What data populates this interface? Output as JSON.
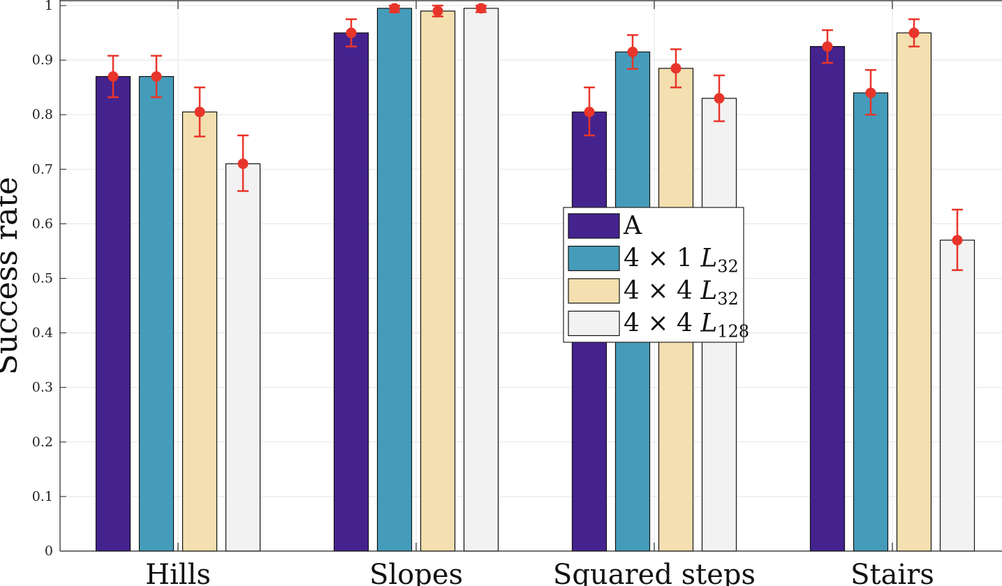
{
  "chart_data": {
    "type": "bar",
    "ylabel": "Success rate",
    "xlabel": "",
    "ylim": [
      0,
      1
    ],
    "yticks": [
      "0",
      "0.1",
      "0.2",
      "0.3",
      "0.4",
      "0.5",
      "0.6",
      "0.7",
      "0.8",
      "0.9",
      "1"
    ],
    "grid": true,
    "categories": [
      "Hills",
      "Slopes",
      "Squared steps",
      "Stairs"
    ],
    "legend_position": "center",
    "series": [
      {
        "name": "A",
        "color": "#44238f",
        "values": [
          0.87,
          0.95,
          0.805,
          0.925
        ],
        "mean": [
          0.87,
          0.95,
          0.805,
          0.925
        ],
        "err_low": [
          0.832,
          0.925,
          0.762,
          0.895
        ],
        "err_high": [
          0.908,
          0.975,
          0.85,
          0.955
        ]
      },
      {
        "name": "4 × 1 L32",
        "label_parts": {
          "main": "4 × 1 ",
          "var": "L",
          "sub": "32"
        },
        "color": "#459cba",
        "values": [
          0.87,
          0.995,
          0.915,
          0.84
        ],
        "mean": [
          0.87,
          0.995,
          0.915,
          0.84
        ],
        "err_low": [
          0.832,
          0.988,
          0.884,
          0.8
        ],
        "err_high": [
          0.908,
          1.0,
          0.946,
          0.882
        ]
      },
      {
        "name": "4 × 4 L32",
        "label_parts": {
          "main": "4 × 4 ",
          "var": "L",
          "sub": "32"
        },
        "color": "#f3dfb0",
        "values": [
          0.805,
          0.99,
          0.885,
          0.95
        ],
        "mean": [
          0.805,
          0.99,
          0.885,
          0.95
        ],
        "err_low": [
          0.76,
          0.98,
          0.85,
          0.925
        ],
        "err_high": [
          0.85,
          1.0,
          0.92,
          0.975
        ]
      },
      {
        "name": "4 × 4 L128",
        "label_parts": {
          "main": "4 × 4 ",
          "var": "L",
          "sub": "128"
        },
        "color": "#f2f2f2",
        "values": [
          0.71,
          0.995,
          0.83,
          0.57
        ],
        "mean": [
          0.71,
          0.995,
          0.83,
          0.57
        ],
        "err_low": [
          0.66,
          0.988,
          0.788,
          0.515
        ],
        "err_high": [
          0.762,
          1.0,
          0.872,
          0.626
        ]
      }
    ],
    "errorbar_color": "#e8352b"
  }
}
